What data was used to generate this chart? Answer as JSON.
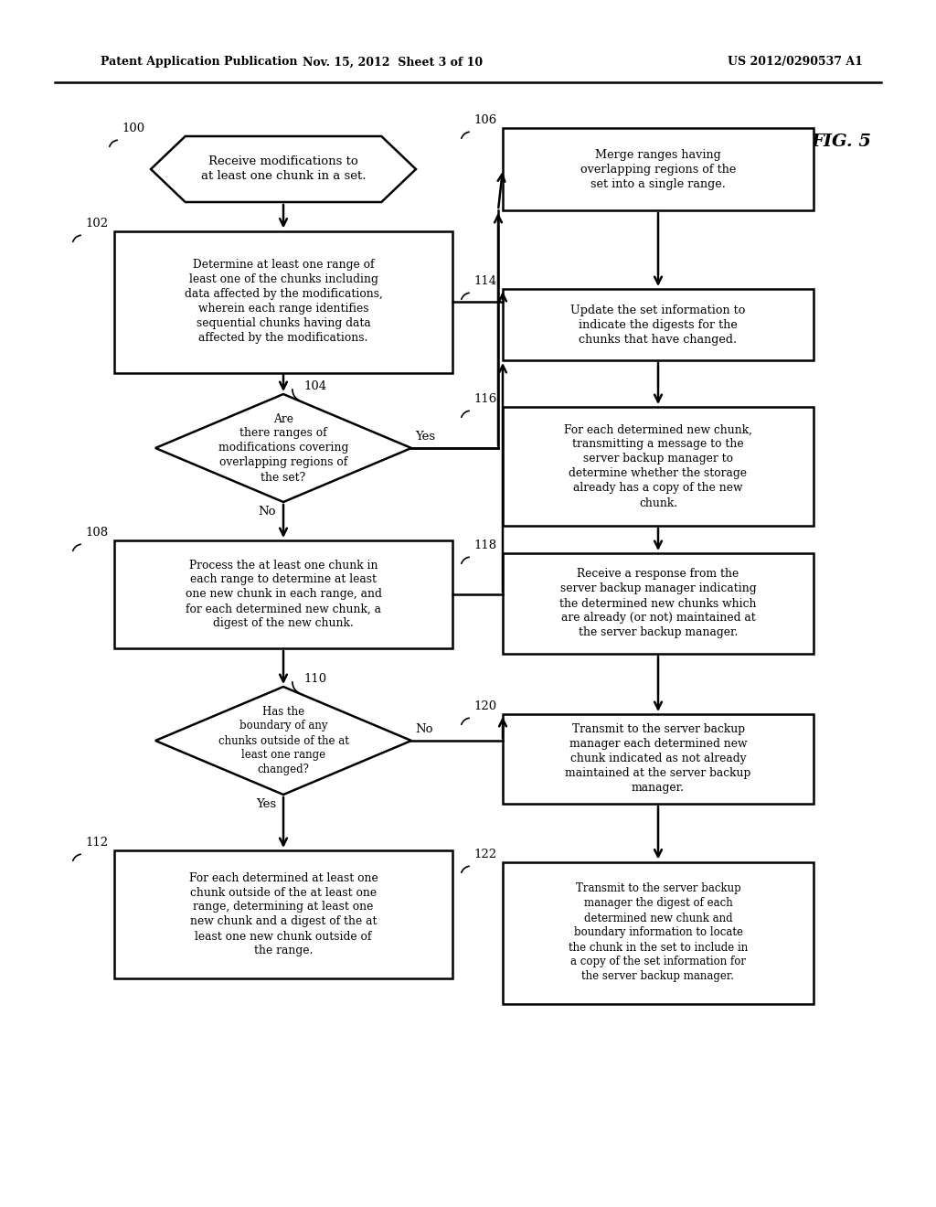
{
  "bg_color": "#ffffff",
  "header_left": "Patent Application Publication",
  "header_mid": "Nov. 15, 2012  Sheet 3 of 10",
  "header_right": "US 2012/0290537 A1",
  "fig_label": "FIG. 5",
  "lw": 1.8,
  "nodes": {
    "100": {
      "label": "Receive modifications to\nat least one chunk in a set."
    },
    "102": {
      "label": "Determine at least one range of\nleast one of the chunks including\ndata affected by the modifications,\nwherein each range identifies\nsequential chunks having data\naffected by the modifications."
    },
    "104": {
      "label": "Are\nthere ranges of\nmodifications covering\noverlapping regions of\nthe set?"
    },
    "106": {
      "label": "Merge ranges having\noverlapping regions of the\nset into a single range."
    },
    "108": {
      "label": "Process the at least one chunk in\neach range to determine at least\none new chunk in each range, and\nfor each determined new chunk, a\ndigest of the new chunk."
    },
    "110": {
      "label": "Has the\nboundary of any\nchunks outside of the at\nleast one range\nchanged?"
    },
    "112": {
      "label": "For each determined at least one\nchunk outside of the at least one\nrange, determining at least one\nnew chunk and a digest of the at\nleast one new chunk outside of\nthe range."
    },
    "114": {
      "label": "Update the set information to\nindicate the digests for the\nchunks that have changed."
    },
    "116": {
      "label": "For each determined new chunk,\ntransmitting a message to the\nserver backup manager to\ndetermine whether the storage\nalready has a copy of the new\nchunk."
    },
    "118": {
      "label": "Receive a response from the\nserver backup manager indicating\nthe determined new chunks which\nare already (or not) maintained at\nthe server backup manager."
    },
    "120": {
      "label": "Transmit to the server backup\nmanager each determined new\nchunk indicated as not already\nmaintained at the server backup\nmanager."
    },
    "122": {
      "label": "Transmit to the server backup\nmanager the digest of each\ndetermined new chunk and\nboundary information to locate\nthe chunk in the set to include in\na copy of the set information for\nthe server backup manager."
    }
  }
}
